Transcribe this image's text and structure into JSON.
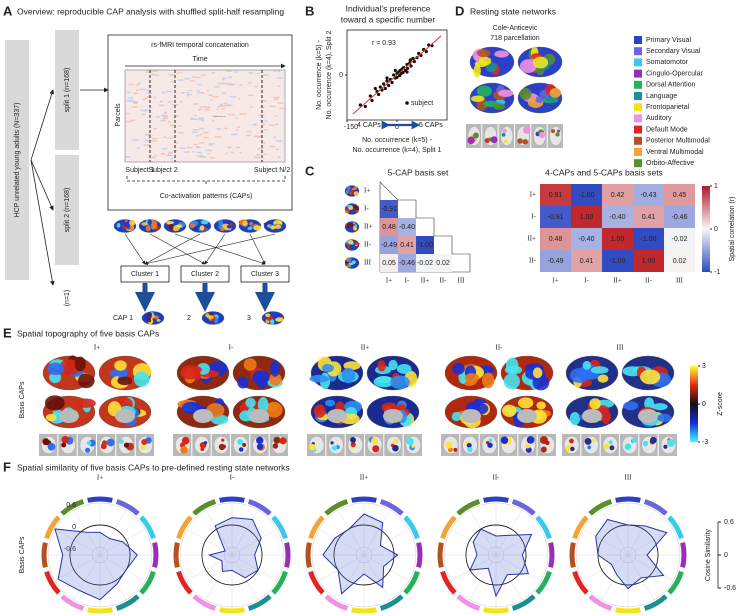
{
  "panels": {
    "A": {
      "letter": "A",
      "title": "Overview: reproducible CAP analysis with shuffled split-half resampling",
      "cohort": "HCP unrelated young adults (N=337)",
      "splits": [
        "split 1 (n=168)",
        "split 2 (n=168)",
        "(n=1)"
      ],
      "concat_title": "rs-fMRI temporal concatenation",
      "time": "Time",
      "parcels": "Parcels",
      "subjects": [
        "Subject 1",
        "Subject 2",
        "Subject N/2"
      ],
      "dots": "......",
      "caps_label": "Co-activation patterns (CAPs)",
      "clusters": [
        "Cluster 1",
        "Cluster 2",
        "Cluster 3"
      ],
      "caps": [
        "CAP 1",
        "2",
        "3"
      ]
    },
    "B": {
      "letter": "B",
      "title": [
        "Individual's preference",
        "toward a specific number"
      ],
      "ylabel": [
        "No. occurrence (k=5) -",
        "No. occurrence (k=4), Split 2"
      ],
      "xlabel": [
        "No. occurrence (k=5) -",
        "No. occurrence (k=4), Split 1"
      ],
      "annotation": "r = 0.93",
      "legend": "subject",
      "arrow_left": "4 CAPs",
      "arrow_right": "5 CAPs",
      "xlim": [
        -150,
        150
      ],
      "ylim": [
        -150,
        150
      ],
      "xticks": [
        -150,
        0
      ],
      "yticks": [
        0
      ],
      "points": [
        [
          -110,
          -100
        ],
        [
          -95,
          -105
        ],
        [
          -80,
          -70
        ],
        [
          -75,
          -85
        ],
        [
          -60,
          -55
        ],
        [
          -55,
          -65
        ],
        [
          -50,
          -40
        ],
        [
          -45,
          -50
        ],
        [
          -40,
          -30
        ],
        [
          -35,
          -45
        ],
        [
          -30,
          -20
        ],
        [
          -25,
          -35
        ],
        [
          -20,
          -15
        ],
        [
          -15,
          -25
        ],
        [
          -10,
          0
        ],
        [
          -5,
          -10
        ],
        [
          0,
          5
        ],
        [
          0,
          -8
        ],
        [
          5,
          10
        ],
        [
          8,
          -2
        ],
        [
          10,
          15
        ],
        [
          12,
          5
        ],
        [
          15,
          20
        ],
        [
          18,
          8
        ],
        [
          20,
          25
        ],
        [
          25,
          15
        ],
        [
          30,
          35
        ],
        [
          32,
          22
        ],
        [
          38,
          40
        ],
        [
          42,
          30
        ],
        [
          48,
          55
        ],
        [
          52,
          45
        ],
        [
          60,
          58
        ],
        [
          65,
          72
        ],
        [
          72,
          65
        ],
        [
          80,
          85
        ],
        [
          88,
          78
        ],
        [
          95,
          100
        ],
        [
          105,
          98
        ],
        [
          -30,
          -10
        ],
        [
          30,
          10
        ],
        [
          -5,
          15
        ],
        [
          40,
          50
        ],
        [
          -65,
          -45
        ]
      ]
    },
    "C": {
      "letter": "C",
      "left": {
        "title": "5-CAP basis set",
        "rows": [
          "I+",
          "I-",
          "II+",
          "II-",
          "III"
        ],
        "cols": [
          "I+",
          "I-",
          "II+",
          "II-",
          "III"
        ],
        "cells": [
          [
            "-0.91"
          ],
          [
            "0.48",
            "-0.40"
          ],
          [
            "-0.49",
            "0.41",
            "-1.00"
          ],
          [
            "0.05",
            "-0.46",
            "-0.02",
            "0.02"
          ]
        ]
      },
      "right": {
        "title": "4-CAPs and 5-CAPs basis sets",
        "rows": [
          "I+",
          "I-",
          "II+",
          "II-"
        ],
        "cols": [
          "I+",
          "I-",
          "II+",
          "II-",
          "III"
        ],
        "cells": [
          [
            "0.91",
            "-1.00",
            "0.42",
            "-0.43",
            "0.45"
          ],
          [
            "-0.91",
            "1.00",
            "-0.40",
            "0.41",
            "-0.46"
          ],
          [
            "0.48",
            "-0.40",
            "1.00",
            "-1.00",
            "-0.02"
          ],
          [
            "-0.49",
            "0.41",
            "-1.00",
            "1.00",
            "0.02"
          ]
        ]
      },
      "colorbar": {
        "label": "Spatial correlation (r)",
        "ticks": [
          1,
          0,
          -1
        ]
      }
    },
    "D": {
      "letter": "D",
      "title": "Resting state networks",
      "parcellation": [
        "Cole-Anticevic",
        "718 parcellation"
      ],
      "networks": [
        {
          "name": "Primary Visual",
          "color": "#2b3fc9"
        },
        {
          "name": "Secondary Visual",
          "color": "#6b63e0"
        },
        {
          "name": "Somatomotor",
          "color": "#3cc8ec"
        },
        {
          "name": "Cingulo-Opercular",
          "color": "#9a2db8"
        },
        {
          "name": "Dorsal Attention",
          "color": "#27b05c"
        },
        {
          "name": "Language",
          "color": "#1a8f94"
        },
        {
          "name": "Frontoparietal",
          "color": "#f3e41a"
        },
        {
          "name": "Auditory",
          "color": "#f191e3"
        },
        {
          "name": "Default Mode",
          "color": "#e22424"
        },
        {
          "name": "Posterior Multimodal",
          "color": "#b2531f"
        },
        {
          "name": "Ventral Multimodal",
          "color": "#f2a437"
        },
        {
          "name": "Orbito-Affective",
          "color": "#5a8d2b"
        }
      ]
    },
    "E": {
      "letter": "E",
      "title": "Spatial topography of five basis CAPs",
      "ylabel": "Basis CAPs",
      "caps": [
        "I+",
        "I-",
        "II+",
        "II-",
        "III"
      ],
      "colorbar": {
        "label": "Z-score",
        "ticks": [
          3,
          0,
          -3
        ]
      }
    },
    "F": {
      "letter": "F",
      "title": "Spatial similarity of five basis CAPs to pre-defined resting state networks",
      "ylabel": "Basis CAPs",
      "rlim": [
        -0.6,
        0.6
      ],
      "rticks": [
        0.6,
        0,
        -0.6
      ],
      "caps": [
        {
          "name": "I+",
          "values": [
            -0.2,
            -0.3,
            -0.1,
            0.2,
            0.0,
            0.1,
            0.4,
            0.3,
            0.5,
            0.2,
            0.6,
            -0.1
          ]
        },
        {
          "name": "I-",
          "values": [
            0.2,
            0.3,
            0.1,
            -0.2,
            0.0,
            -0.1,
            -0.4,
            -0.3,
            -0.5,
            -0.2,
            -0.6,
            0.1
          ]
        },
        {
          "name": "II+",
          "values": [
            0.3,
            0.2,
            -0.3,
            0.1,
            -0.2,
            0.2,
            -0.3,
            0.4,
            0.0,
            0.3,
            0.1,
            0.0
          ]
        },
        {
          "name": "II-",
          "values": [
            -0.3,
            -0.2,
            0.3,
            -0.1,
            0.2,
            -0.2,
            0.3,
            -0.4,
            0.0,
            -0.3,
            -0.1,
            0.0
          ]
        },
        {
          "name": "III",
          "values": [
            0.0,
            0.1,
            0.4,
            -0.3,
            0.3,
            -0.1,
            0.1,
            -0.2,
            -0.3,
            0.0,
            0.2,
            0.3
          ]
        }
      ],
      "legend": {
        "label": "Cosine Similarity",
        "ticks": [
          0.6,
          0,
          -0.6
        ]
      }
    }
  }
}
